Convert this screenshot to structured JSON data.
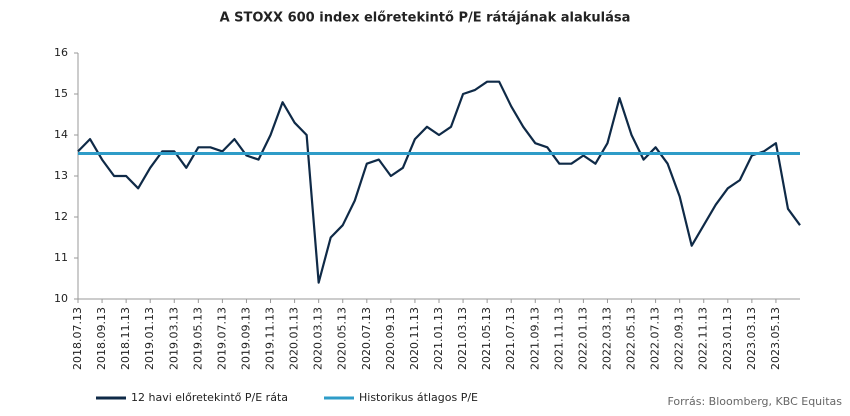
{
  "chart_data": {
    "type": "line",
    "title": "A STOXX 600 index előretekintő P/E rátájának alakulása",
    "source": "Forrás: Bloomberg, KBC Equitas",
    "x": [
      "2018.07.13",
      "2018.08.13",
      "2018.09.13",
      "2018.10.13",
      "2018.11.13",
      "2018.12.13",
      "2019.01.13",
      "2019.02.13",
      "2019.03.13",
      "2019.04.13",
      "2019.05.13",
      "2019.06.13",
      "2019.07.13",
      "2019.08.13",
      "2019.09.13",
      "2019.10.13",
      "2019.11.13",
      "2019.12.13",
      "2020.01.13",
      "2020.02.13",
      "2020.03.13",
      "2020.04.13",
      "2020.05.13",
      "2020.06.13",
      "2020.07.13",
      "2020.08.13",
      "2020.09.13",
      "2020.10.13",
      "2020.11.13",
      "2020.12.13",
      "2021.01.13",
      "2021.02.13",
      "2021.03.13",
      "2021.04.13",
      "2021.05.13",
      "2021.06.13",
      "2021.07.13",
      "2021.08.13",
      "2021.09.13",
      "2021.10.13",
      "2021.11.13",
      "2021.12.13",
      "2022.01.13",
      "2022.02.13",
      "2022.03.13",
      "2022.04.13",
      "2022.05.13",
      "2022.06.13",
      "2022.07.13",
      "2022.08.13",
      "2022.09.13",
      "2022.10.13",
      "2022.11.13",
      "2022.12.13",
      "2023.01.13",
      "2023.02.13",
      "2023.03.13",
      "2023.04.13",
      "2023.05.13",
      "2023.06.13",
      "2023.07.13"
    ],
    "series": [
      {
        "name": "12 havi előretekintő P/E ráta",
        "color": "#0f2a47",
        "values": [
          13.6,
          13.9,
          13.4,
          13.0,
          13.0,
          12.7,
          13.2,
          13.6,
          13.6,
          13.2,
          13.7,
          13.7,
          13.6,
          13.9,
          13.5,
          13.4,
          14.0,
          14.8,
          14.3,
          14.0,
          10.4,
          11.5,
          11.8,
          12.4,
          13.3,
          13.4,
          13.0,
          13.2,
          13.9,
          14.2,
          14.0,
          14.2,
          15.0,
          15.1,
          15.3,
          15.3,
          14.7,
          14.2,
          13.8,
          13.7,
          13.3,
          13.3,
          13.5,
          13.3,
          13.8,
          14.9,
          14.0,
          13.4,
          13.7,
          13.3,
          12.5,
          11.3,
          11.8,
          12.3,
          12.7,
          12.9,
          13.5,
          13.6,
          13.8,
          12.2,
          11.8
        ]
      },
      {
        "name": "Historikus átlagos P/E",
        "color": "#2e9cc8",
        "constant": 13.55
      }
    ],
    "xlim": [
      "2018.07.13",
      "2023.07.13"
    ],
    "xticks": [
      "2018.07.13",
      "2018.09.13",
      "2018.11.13",
      "2019.01.13",
      "2019.03.13",
      "2019.05.13",
      "2019.07.13",
      "2019.09.13",
      "2019.11.13",
      "2020.01.13",
      "2020.03.13",
      "2020.05.13",
      "2020.07.13",
      "2020.09.13",
      "2020.11.13",
      "2021.01.13",
      "2021.03.13",
      "2021.05.13",
      "2021.07.13",
      "2021.09.13",
      "2021.11.13",
      "2022.01.13",
      "2022.03.13",
      "2022.05.13",
      "2022.07.13",
      "2022.09.13",
      "2022.11.13",
      "2023.01.13",
      "2023.03.13",
      "2023.05.13"
    ],
    "ylim": [
      10,
      16
    ],
    "yticks": [
      10,
      11,
      12,
      13,
      14,
      15,
      16
    ],
    "grid": false
  }
}
